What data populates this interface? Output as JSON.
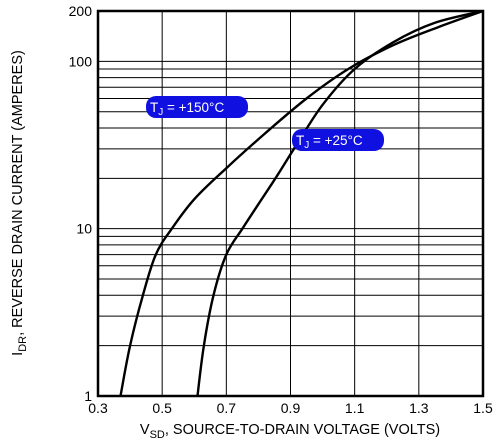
{
  "chart_data": {
    "type": "line",
    "x_scale": "linear",
    "y_scale": "log",
    "xlim": [
      0.3,
      1.5
    ],
    "ylim": [
      1,
      200
    ],
    "grid": true,
    "x_ticks": [
      "0.3",
      "0.5",
      "0.7",
      "0.9",
      "1.1",
      "1.3",
      "1.5"
    ],
    "y_ticks": [
      "1",
      "10",
      "100",
      "200"
    ],
    "xlabel": {
      "main": "V",
      "sub": "SD",
      "rest": ", SOURCE-TO-DRAIN VOLTAGE (VOLTS)"
    },
    "ylabel": {
      "main": "I",
      "sub": "DR",
      "rest": ", REVERSE DRAIN CURRENT (AMPERES)"
    },
    "series": [
      {
        "name": {
          "main": "T",
          "sub": "J",
          "rest": " = +150°C"
        },
        "color": "#000000",
        "label_color": "#1010e0",
        "x": [
          0.37,
          0.4,
          0.44,
          0.48,
          0.53,
          0.6,
          0.7,
          0.82,
          0.95,
          1.08,
          1.22,
          1.36,
          1.5
        ],
        "y": [
          1,
          2,
          4,
          7,
          10,
          15,
          23,
          37,
          60,
          90,
          125,
          160,
          200
        ]
      },
      {
        "name": {
          "main": "T",
          "sub": "J",
          "rest": " = +25°C"
        },
        "color": "#000000",
        "label_color": "#1010e0",
        "x": [
          0.61,
          0.63,
          0.66,
          0.7,
          0.75,
          0.8,
          0.86,
          0.92,
          1.0,
          1.1,
          1.22,
          1.35,
          1.5
        ],
        "y": [
          1,
          2,
          4,
          7,
          10,
          14,
          21,
          32,
          55,
          90,
          130,
          170,
          200
        ]
      }
    ]
  }
}
